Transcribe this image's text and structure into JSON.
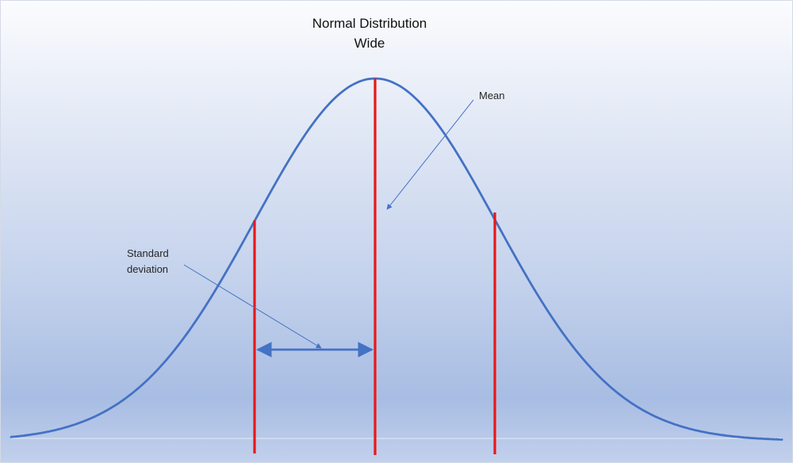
{
  "title": {
    "line1": "Normal Distribution",
    "line2": "Wide"
  },
  "annotations": {
    "mean": "Mean",
    "std_dev_line1": "Standard",
    "std_dev_line2": "deviation"
  },
  "colors": {
    "curve": "#4472c4",
    "markers": "#e81818",
    "arrows": "#4472c4",
    "background_top": "#fbfcfe",
    "background_bottom": "#a8bde3"
  }
}
